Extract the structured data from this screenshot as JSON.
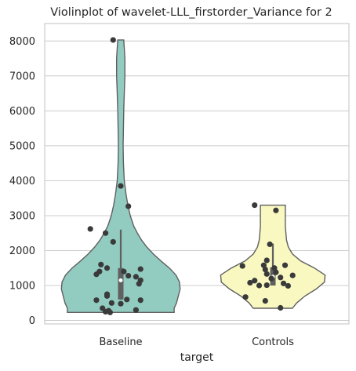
{
  "chart_data": {
    "type": "violin",
    "title": "Violinplot of wavelet-LLL_firstorder_Variance for 2",
    "xlabel": "target",
    "ylabel": "",
    "ylim": [
      -100,
      8500
    ],
    "yticks": [
      0,
      1000,
      2000,
      3000,
      4000,
      5000,
      6000,
      7000,
      8000
    ],
    "ytick_labels": [
      "0",
      "1000",
      "2000",
      "3000",
      "4000",
      "5000",
      "6000",
      "7000",
      "8000"
    ],
    "grid": true,
    "categories": [
      "Baseline",
      "Controls"
    ],
    "colors": [
      "#92cbc0",
      "#f8f8c0"
    ],
    "series": [
      {
        "category": "Baseline",
        "min": 230,
        "max": 8030,
        "q1": 600,
        "median": 1150,
        "q3": 1500,
        "whisker_high": 2600,
        "density": [
          {
            "y": 230,
            "w": 0.9
          },
          {
            "y": 350,
            "w": 0.9
          },
          {
            "y": 500,
            "w": 0.94
          },
          {
            "y": 700,
            "w": 0.97
          },
          {
            "y": 900,
            "w": 1.0
          },
          {
            "y": 1100,
            "w": 0.99
          },
          {
            "y": 1300,
            "w": 0.93
          },
          {
            "y": 1500,
            "w": 0.82
          },
          {
            "y": 1700,
            "w": 0.68
          },
          {
            "y": 1900,
            "w": 0.55
          },
          {
            "y": 2100,
            "w": 0.44
          },
          {
            "y": 2300,
            "w": 0.35
          },
          {
            "y": 2500,
            "w": 0.28
          },
          {
            "y": 2700,
            "w": 0.22
          },
          {
            "y": 3000,
            "w": 0.16
          },
          {
            "y": 3300,
            "w": 0.12
          },
          {
            "y": 3600,
            "w": 0.09
          },
          {
            "y": 4000,
            "w": 0.06
          },
          {
            "y": 4500,
            "w": 0.045
          },
          {
            "y": 5000,
            "w": 0.04
          },
          {
            "y": 5500,
            "w": 0.045
          },
          {
            "y": 6000,
            "w": 0.05
          },
          {
            "y": 6500,
            "w": 0.06
          },
          {
            "y": 7000,
            "w": 0.07
          },
          {
            "y": 7500,
            "w": 0.07
          },
          {
            "y": 7800,
            "w": 0.06
          },
          {
            "y": 8030,
            "w": 0.05
          }
        ],
        "points": [
          {
            "x": -0.05,
            "y": 8030
          },
          {
            "x": 0.0,
            "y": 3850
          },
          {
            "x": 0.05,
            "y": 3270
          },
          {
            "x": -0.2,
            "y": 2620
          },
          {
            "x": -0.1,
            "y": 2500
          },
          {
            "x": -0.05,
            "y": 2250
          },
          {
            "x": -0.13,
            "y": 1600
          },
          {
            "x": -0.09,
            "y": 1500
          },
          {
            "x": -0.14,
            "y": 1400
          },
          {
            "x": -0.16,
            "y": 1320
          },
          {
            "x": 0.13,
            "y": 1470
          },
          {
            "x": 0.1,
            "y": 1250
          },
          {
            "x": 0.13,
            "y": 1150
          },
          {
            "x": 0.12,
            "y": 1050
          },
          {
            "x": 0.05,
            "y": 1280
          },
          {
            "x": 0.02,
            "y": 1400
          },
          {
            "x": 0.04,
            "y": 600
          },
          {
            "x": 0.13,
            "y": 580
          },
          {
            "x": -0.16,
            "y": 580
          },
          {
            "x": -0.09,
            "y": 750
          },
          {
            "x": -0.09,
            "y": 700
          },
          {
            "x": -0.06,
            "y": 500
          },
          {
            "x": 0.0,
            "y": 480
          },
          {
            "x": -0.12,
            "y": 350
          },
          {
            "x": -0.1,
            "y": 250
          },
          {
            "x": -0.08,
            "y": 280
          },
          {
            "x": -0.07,
            "y": 230
          },
          {
            "x": 0.1,
            "y": 300
          }
        ]
      },
      {
        "category": "Controls",
        "min": 350,
        "max": 3300,
        "q1": 1000,
        "median": 1250,
        "q3": 1520,
        "whisker_high": 2200,
        "density": [
          {
            "y": 350,
            "w": 0.33
          },
          {
            "y": 500,
            "w": 0.4
          },
          {
            "y": 700,
            "w": 0.54
          },
          {
            "y": 900,
            "w": 0.73
          },
          {
            "y": 1100,
            "w": 0.87
          },
          {
            "y": 1300,
            "w": 0.88
          },
          {
            "y": 1500,
            "w": 0.7
          },
          {
            "y": 1700,
            "w": 0.47
          },
          {
            "y": 1900,
            "w": 0.33
          },
          {
            "y": 2100,
            "w": 0.26
          },
          {
            "y": 2300,
            "w": 0.23
          },
          {
            "y": 2500,
            "w": 0.22
          },
          {
            "y": 2700,
            "w": 0.21
          },
          {
            "y": 2900,
            "w": 0.21
          },
          {
            "y": 3100,
            "w": 0.21
          },
          {
            "y": 3300,
            "w": 0.21
          }
        ],
        "points": [
          {
            "x": -0.12,
            "y": 3300
          },
          {
            "x": 0.02,
            "y": 3150
          },
          {
            "x": -0.02,
            "y": 2180
          },
          {
            "x": -0.2,
            "y": 1560
          },
          {
            "x": -0.04,
            "y": 1720
          },
          {
            "x": -0.06,
            "y": 1580
          },
          {
            "x": 0.08,
            "y": 1580
          },
          {
            "x": 0.01,
            "y": 1500
          },
          {
            "x": -0.05,
            "y": 1460
          },
          {
            "x": 0.02,
            "y": 1380
          },
          {
            "x": -0.04,
            "y": 1330
          },
          {
            "x": 0.13,
            "y": 1290
          },
          {
            "x": 0.05,
            "y": 1230
          },
          {
            "x": -0.01,
            "y": 1200
          },
          {
            "x": -0.12,
            "y": 1140
          },
          {
            "x": -0.15,
            "y": 1080
          },
          {
            "x": 0.07,
            "y": 1060
          },
          {
            "x": -0.04,
            "y": 1010
          },
          {
            "x": -0.09,
            "y": 1000
          },
          {
            "x": 0.1,
            "y": 990
          },
          {
            "x": -0.18,
            "y": 670
          },
          {
            "x": -0.05,
            "y": 560
          },
          {
            "x": 0.05,
            "y": 360
          }
        ]
      }
    ]
  }
}
